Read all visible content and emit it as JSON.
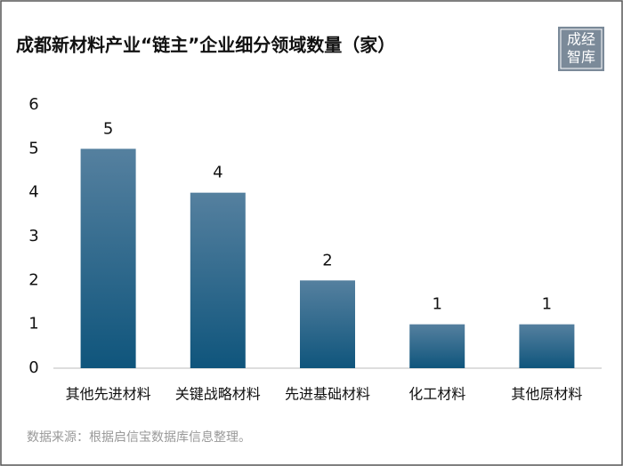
{
  "chart_data": {
    "type": "bar",
    "title": "成都新材料产业“链主”企业细分领域数量（家）",
    "categories": [
      "其他先进材料",
      "关键战略材料",
      "先进基础材料",
      "化工材料",
      "其他原材料"
    ],
    "values": [
      5,
      4,
      2,
      1,
      1
    ],
    "color": "#1a5a80",
    "ylim": [
      0,
      6
    ],
    "yticks": [
      0,
      1,
      2,
      3,
      4,
      5,
      6
    ],
    "grid": false,
    "source": "数据来源：根据启信宝数据库信息整理。"
  },
  "logo": {
    "lines": [
      "成经",
      "智库"
    ]
  }
}
